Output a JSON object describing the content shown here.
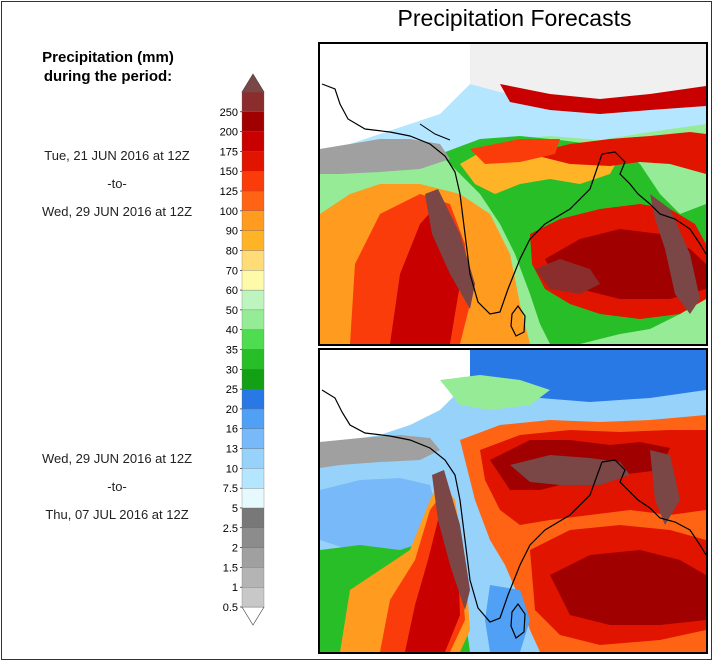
{
  "title": "Precipitation Forecasts",
  "legend": {
    "title_line1": "Precipitation (mm)",
    "title_line2": "during the period:",
    "levels": [
      "0.5",
      "1",
      "1.5",
      "2",
      "2.5",
      "5",
      "7.5",
      "10",
      "13",
      "16",
      "20",
      "25",
      "30",
      "35",
      "40",
      "50",
      "60",
      "70",
      "80",
      "90",
      "100",
      "125",
      "150",
      "175",
      "200",
      "250"
    ],
    "colors": [
      "#c8c8c8",
      "#b4b4b4",
      "#a0a0a0",
      "#8c8c8c",
      "#787878",
      "#e6fafe",
      "#b4e6ff",
      "#96d2fa",
      "#78b9fa",
      "#50a0f5",
      "#2878e6",
      "#14a014",
      "#28be28",
      "#50dc50",
      "#96eb96",
      "#bef5be",
      "#fffaaa",
      "#ffdc78",
      "#ffb428",
      "#ff9b1e",
      "#ff6414",
      "#fa3c0a",
      "#e11400",
      "#c80000",
      "#a00000",
      "#8c2d2d"
    ],
    "over_color": "#7a4646",
    "under_color": "#ffffff"
  },
  "periods": [
    {
      "start": "Tue, 21 JUN 2016 at 12Z",
      "sep": "-to-",
      "end": "Wed, 29 JUN 2016 at 12Z"
    },
    {
      "start": "Wed, 29 JUN 2016 at 12Z",
      "sep": "-to-",
      "end": "Thu, 07 JUL 2016 at 12Z"
    }
  ]
}
